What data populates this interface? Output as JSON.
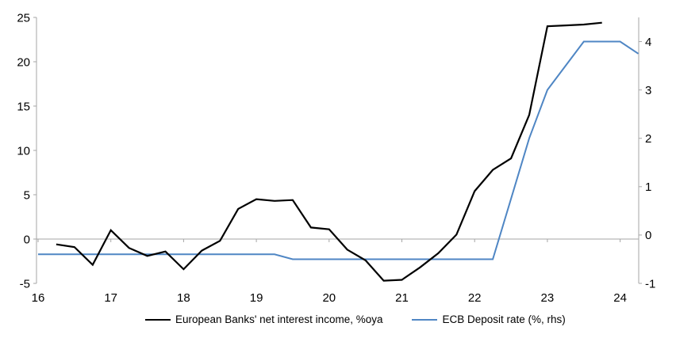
{
  "chart_data": {
    "type": "line",
    "title": "",
    "legend_position": "bottom",
    "grid": "single horizontal gridline at zero only",
    "background": "#ffffff",
    "axis_color": "#a6a6a6",
    "text_color": "#000000",
    "x_axis": {
      "min": 16,
      "max": 24.25,
      "ticks": [
        16,
        17,
        18,
        19,
        20,
        21,
        22,
        23,
        24
      ],
      "tick_labels": [
        "16",
        "17",
        "18",
        "19",
        "20",
        "21",
        "22",
        "23",
        "24"
      ]
    },
    "y_axis_left": {
      "min": -5,
      "max": 25,
      "ticks": [
        25,
        20,
        15,
        10,
        5,
        0,
        -5
      ],
      "tick_labels": [
        "25",
        "20",
        "15",
        "10",
        "5",
        "0",
        "-5"
      ]
    },
    "y_axis_right": {
      "min": -1,
      "max": 4.5,
      "ticks": [
        4,
        3,
        2,
        1,
        0,
        -1
      ],
      "tick_labels": [
        "4",
        "3",
        "2",
        "1",
        "0",
        "-1"
      ]
    },
    "series": [
      {
        "name": "European Banks' net interest income, %oya",
        "color": "#000000",
        "stroke_width": 2.2,
        "axis": "left",
        "x": [
          16.25,
          16.5,
          16.75,
          17,
          17.25,
          17.5,
          17.75,
          18,
          18.25,
          18.5,
          18.75,
          19,
          19.25,
          19.5,
          19.75,
          20,
          20.25,
          20.5,
          20.75,
          21,
          21.25,
          21.5,
          21.75,
          22,
          22.25,
          22.5,
          22.75,
          23,
          23.25,
          23.5,
          23.75
        ],
        "values": [
          -0.6,
          -0.9,
          -2.9,
          1.0,
          -1.0,
          -1.9,
          -1.4,
          -3.4,
          -1.3,
          -0.2,
          3.4,
          4.5,
          4.3,
          4.4,
          1.3,
          1.1,
          -1.2,
          -2.4,
          -4.7,
          -4.6,
          -3.2,
          -1.6,
          0.5,
          5.4,
          7.8,
          9.1,
          14.0,
          24.0,
          24.1,
          24.2,
          24.4
        ]
      },
      {
        "name": "ECB Deposit rate (%, rhs)",
        "color": "#4f86c4",
        "stroke_width": 2,
        "axis": "right",
        "x": [
          16,
          16.25,
          16.5,
          16.75,
          17,
          17.25,
          17.5,
          17.75,
          18,
          18.25,
          18.5,
          18.75,
          19,
          19.25,
          19.5,
          19.75,
          20,
          20.25,
          20.5,
          20.75,
          21,
          21.25,
          21.5,
          21.75,
          22,
          22.25,
          22.5,
          22.75,
          23,
          23.25,
          23.5,
          23.75,
          24,
          24.25
        ],
        "values": [
          -0.4,
          -0.4,
          -0.4,
          -0.4,
          -0.4,
          -0.4,
          -0.4,
          -0.4,
          -0.4,
          -0.4,
          -0.4,
          -0.4,
          -0.4,
          -0.4,
          -0.5,
          -0.5,
          -0.5,
          -0.5,
          -0.5,
          -0.5,
          -0.5,
          -0.5,
          -0.5,
          -0.5,
          -0.5,
          -0.5,
          0.75,
          2.0,
          3.0,
          3.5,
          4.0,
          4.0,
          4.0,
          3.75
        ]
      }
    ]
  }
}
